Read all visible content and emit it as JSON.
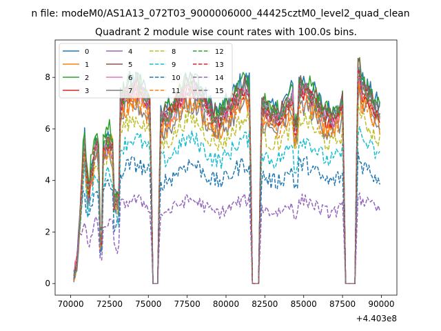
{
  "figure": {
    "suptitle": "n file: modeM0/AS1A13_072T03_9000006000_44425cztM0_level2_quad_clean",
    "title": "Quadrant 2 module wise count rates with 100.0s bins.",
    "offset_text": "+4.403e8"
  },
  "chart_data": {
    "type": "line",
    "title": "Quadrant 2 module wise count rates with 100.0s bins.",
    "xlabel": "",
    "ylabel": "",
    "x_offset": 440300000,
    "xlim": [
      69000,
      91000
    ],
    "ylim": [
      -0.45,
      9.45
    ],
    "xticks": [
      70000,
      72500,
      75000,
      77500,
      80000,
      82500,
      85000,
      87500,
      90000
    ],
    "xtick_labels": [
      "70000",
      "72500",
      "75000",
      "77500",
      "80000",
      "82500",
      "85000",
      "87500",
      "90000"
    ],
    "yticks": [
      0,
      2,
      4,
      6,
      8
    ],
    "ytick_labels": [
      "0",
      "2",
      "4",
      "6",
      "8"
    ],
    "grid": false,
    "legend_position": "top-left",
    "legend_columns": 4,
    "bin_seconds": 100,
    "x_start": 70200,
    "x_end": 89900,
    "gaps": [
      [
        75300,
        75650
      ],
      [
        81700,
        82150
      ],
      [
        87700,
        88300
      ]
    ],
    "series": [
      {
        "name": "0",
        "color": "#1f77b4",
        "style": "solid",
        "level": 7.3,
        "peak": 6.0,
        "spread": 0.45
      },
      {
        "name": "1",
        "color": "#ff7f0e",
        "style": "solid",
        "level": 6.6,
        "peak": 5.8,
        "spread": 0.5
      },
      {
        "name": "2",
        "color": "#2ca02c",
        "style": "solid",
        "level": 7.3,
        "peak": 6.5,
        "spread": 0.4
      },
      {
        "name": "3",
        "color": "#d62728",
        "style": "solid",
        "level": 6.9,
        "peak": 5.9,
        "spread": 0.35
      },
      {
        "name": "4",
        "color": "#9467bd",
        "style": "solid",
        "level": 7.0,
        "peak": 5.5,
        "spread": 0.35
      },
      {
        "name": "5",
        "color": "#8c564b",
        "style": "solid",
        "level": 7.2,
        "peak": 5.8,
        "spread": 0.35
      },
      {
        "name": "6",
        "color": "#e377c2",
        "style": "solid",
        "level": 6.9,
        "peak": 5.5,
        "spread": 0.35
      },
      {
        "name": "7",
        "color": "#7f7f7f",
        "style": "solid",
        "level": 6.4,
        "peak": 5.3,
        "spread": 0.4
      },
      {
        "name": "8",
        "color": "#bcbd22",
        "style": "dashed",
        "level": 5.9,
        "peak": 5.2,
        "spread": 0.35
      },
      {
        "name": "9",
        "color": "#17becf",
        "style": "dashed",
        "level": 5.2,
        "peak": 4.6,
        "spread": 0.35
      },
      {
        "name": "10",
        "color": "#1f77b4",
        "style": "dashed",
        "level": 4.3,
        "peak": 4.0,
        "spread": 0.35
      },
      {
        "name": "11",
        "color": "#ff7f0e",
        "style": "dashed",
        "level": 6.5,
        "peak": 5.5,
        "spread": 0.4
      },
      {
        "name": "12",
        "color": "#2ca02c",
        "style": "dashed",
        "level": 7.0,
        "peak": 5.9,
        "spread": 0.35
      },
      {
        "name": "13",
        "color": "#d62728",
        "style": "dashed",
        "level": 6.9,
        "peak": 5.7,
        "spread": 0.35
      },
      {
        "name": "14",
        "color": "#9467bd",
        "style": "dashed",
        "level": 3.0,
        "peak": 2.5,
        "spread": 0.25
      },
      {
        "name": "15",
        "color": "#7f7f7f",
        "style": "dashed",
        "level": 7.0,
        "peak": 5.7,
        "spread": 0.35
      }
    ]
  }
}
